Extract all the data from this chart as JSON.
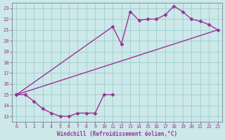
{
  "line1_x": [
    0,
    1,
    2,
    3,
    4,
    5,
    6,
    7,
    8,
    9,
    10,
    11
  ],
  "line1_y": [
    15.0,
    15.0,
    14.4,
    13.7,
    13.3,
    13.0,
    13.0,
    13.3,
    13.3,
    13.3,
    15.0,
    15.0
  ],
  "line2_x": [
    0,
    11,
    12,
    13,
    14,
    15,
    16,
    17,
    18,
    19,
    20,
    21,
    22,
    23
  ],
  "line2_y": [
    15.0,
    21.3,
    19.7,
    22.7,
    21.9,
    22.0,
    22.0,
    22.4,
    23.2,
    22.7,
    22.0,
    21.8,
    21.5,
    21.0
  ],
  "line3_x": [
    0,
    23
  ],
  "line3_y": [
    15.0,
    21.0
  ],
  "line_color": "#993399",
  "bg_color": "#cce8e8",
  "grid_color": "#9ecece",
  "xlim": [
    -0.5,
    23.5
  ],
  "ylim": [
    12.5,
    23.5
  ],
  "xticks": [
    0,
    1,
    2,
    3,
    4,
    5,
    6,
    7,
    8,
    9,
    10,
    11,
    12,
    13,
    14,
    15,
    16,
    17,
    18,
    19,
    20,
    21,
    22,
    23
  ],
  "yticks": [
    13,
    14,
    15,
    16,
    17,
    18,
    19,
    20,
    21,
    22,
    23
  ],
  "xlabel": "Windchill (Refroidissement éolien,°C)",
  "marker": "D",
  "markersize": 2.5,
  "linewidth": 1.0
}
